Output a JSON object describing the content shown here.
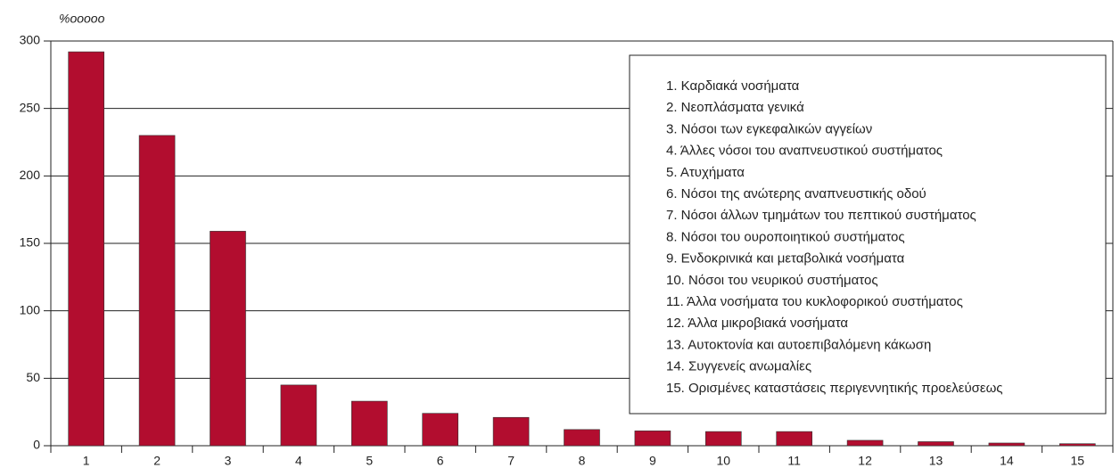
{
  "chart_data": {
    "type": "bar",
    "y_label": "%ooooo",
    "categories": [
      "1",
      "2",
      "3",
      "4",
      "5",
      "6",
      "7",
      "8",
      "9",
      "10",
      "11",
      "12",
      "13",
      "14",
      "15"
    ],
    "values": [
      292,
      230,
      159,
      45,
      33,
      24,
      21,
      12,
      11,
      10.5,
      10.5,
      4,
      3,
      2,
      1.5
    ],
    "color": "#b20d2f",
    "ylim": [
      0,
      300
    ],
    "yticks": [
      0,
      50,
      100,
      150,
      200,
      250,
      300
    ],
    "grid": true,
    "legend_items": [
      "1. Καρδιακά νοσήματα",
      "2. Νεοπλάσματα γενικά",
      "3. Νόσοι των εγκεφαλικών αγγείων",
      "4. Άλλες νόσοι του αναπνευστικού συστήματος",
      "5. Ατυχήματα",
      "6. Νόσοι  της ανώτερης αναπνευστικής οδού",
      "7. Νόσοι άλλων τμημάτων του πεπτικού συστήματος",
      "8. Νόσοι  του ουροποιητικού συστήματος",
      "9. Ενδοκρινικά και μεταβολικά νοσήματα",
      "10. Νόσοι  του νευρικού συστήματος",
      "11. Άλλα νοσήματα του κυκλοφορικού συστήματος",
      "12. Άλλα μικροβιακά νοσήματα",
      "13. Αυτοκτονία και αυτοεπιβαλόμενη κάκωση",
      "14. Συγγενείς ανωμαλίες",
      "15. Ορισμένες καταστάσεις περιγεννητικής προελεύσεως"
    ]
  }
}
